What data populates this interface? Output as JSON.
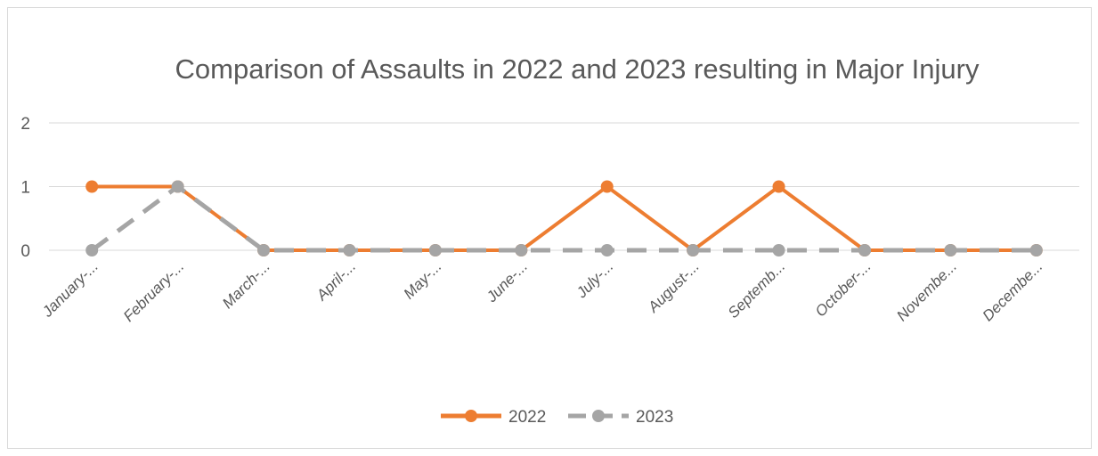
{
  "chart_data": {
    "type": "line",
    "title": "Comparison of Assaults in 2022 and 2023 resulting in Major Injury",
    "categories": [
      "January-...",
      "February-...",
      "March-...",
      "April-...",
      "May-...",
      "June-...",
      "July-...",
      "August-...",
      "Septemb...",
      "October-...",
      "Novembe...",
      "Decembe..."
    ],
    "series": [
      {
        "name": "2022",
        "values": [
          1,
          1,
          0,
          0,
          0,
          0,
          1,
          0,
          1,
          0,
          0,
          0
        ],
        "color": "#ed7d31",
        "dash": "solid"
      },
      {
        "name": "2023",
        "values": [
          0,
          1,
          0,
          0,
          0,
          0,
          0,
          0,
          0,
          0,
          0,
          0
        ],
        "color": "#a5a5a5",
        "dash": "dashed"
      }
    ],
    "yticks": [
      "0",
      "1",
      "2"
    ],
    "ylim": [
      0,
      2
    ],
    "xlabel": "",
    "ylabel": "",
    "grid": true,
    "legend_position": "bottom"
  }
}
